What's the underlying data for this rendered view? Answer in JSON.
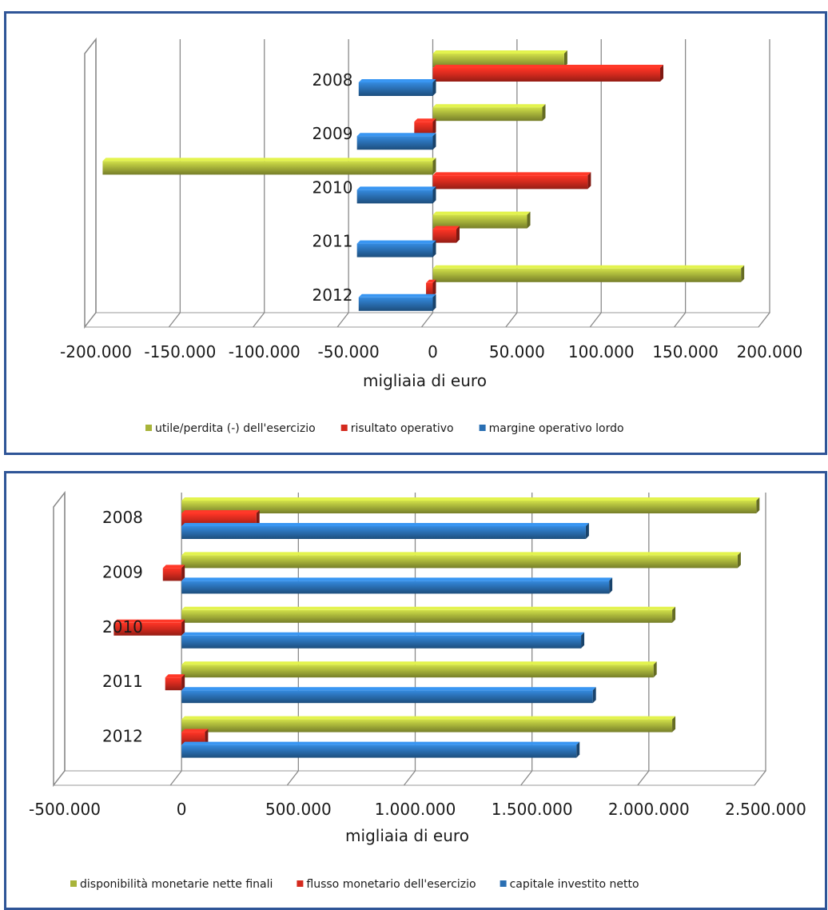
{
  "chart_data": [
    {
      "type": "bar",
      "orientation": "horizontal",
      "categories": [
        "2008",
        "2009",
        "2010",
        "2011",
        "2012"
      ],
      "series": [
        {
          "name": "utile/perdita (-) dell'esercizio",
          "color": "#a8b43a",
          "values": [
            78000,
            65000,
            -196000,
            56000,
            183000
          ]
        },
        {
          "name": "risultato operativo",
          "color": "#d42a1e",
          "values": [
            135000,
            -11000,
            92000,
            14000,
            -4000
          ]
        },
        {
          "name": "margine operativo lordo",
          "color": "#2a6fb3",
          "values": [
            -44000,
            -45000,
            -45000,
            -45000,
            -44000
          ]
        }
      ],
      "xlabel": "migliaia di euro",
      "xlim": [
        -200000,
        200000
      ],
      "xticks": [
        "-200.000",
        "-150.000",
        "-100.000",
        "-50.000",
        "0",
        "50.000",
        "100.000",
        "150.000",
        "200.000"
      ],
      "grid": true,
      "legend": "bottom"
    },
    {
      "type": "bar",
      "orientation": "horizontal",
      "categories": [
        "2008",
        "2009",
        "2010",
        "2011",
        "2012"
      ],
      "series": [
        {
          "name": "disponibilità monetarie nette finali",
          "color": "#a8b43a",
          "values": [
            2460000,
            2380000,
            2100000,
            2020000,
            2100000
          ]
        },
        {
          "name": "flusso monetario dell'esercizio",
          "color": "#d42a1e",
          "values": [
            320000,
            -80000,
            -290000,
            -70000,
            100000
          ]
        },
        {
          "name": "capitale investito netto",
          "color": "#2a6fb3",
          "values": [
            1730000,
            1830000,
            1710000,
            1760000,
            1690000
          ]
        }
      ],
      "xlabel": "migliaia di euro",
      "xlim": [
        -500000,
        2500000
      ],
      "xticks": [
        "-500.000",
        "0",
        "500.000",
        "1.000.000",
        "1.500.000",
        "2.000.000",
        "2.500.000"
      ],
      "grid": true,
      "legend": "bottom"
    }
  ]
}
